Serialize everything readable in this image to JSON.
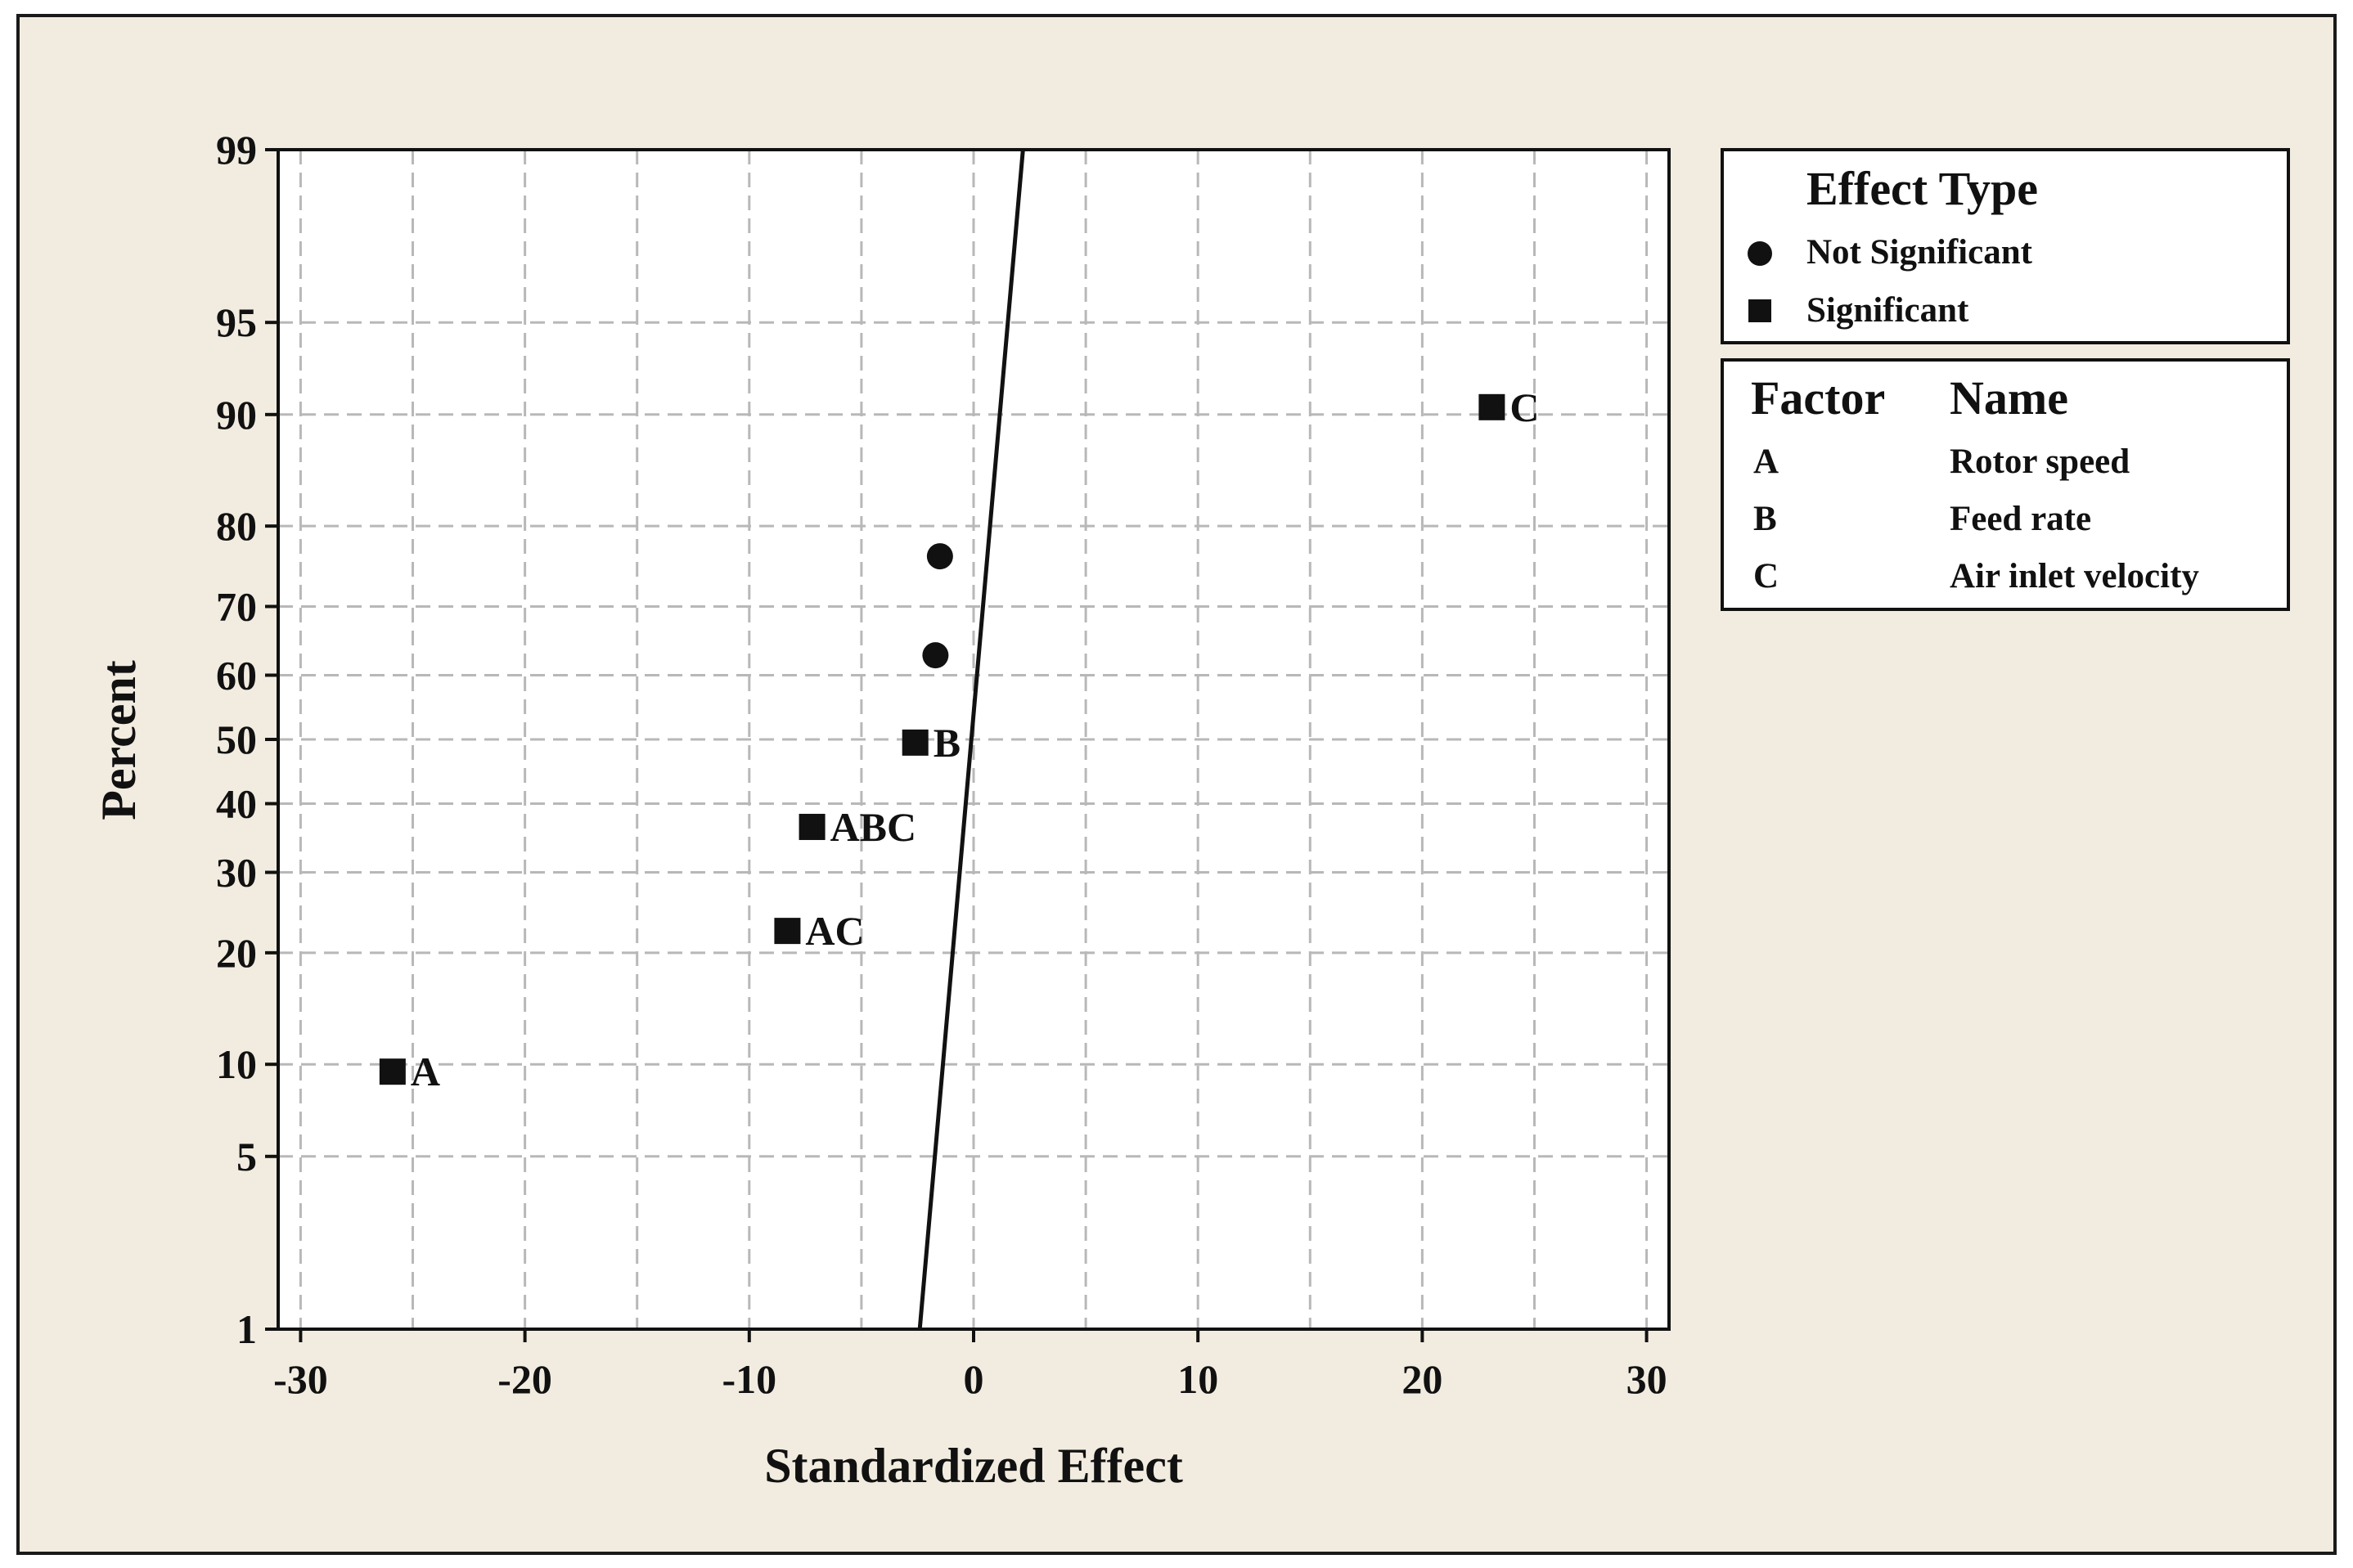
{
  "chart_data": {
    "type": "scatter",
    "title": "",
    "xlabel": "Standardized Effect",
    "ylabel": "Percent",
    "xlim": [
      -31,
      31
    ],
    "xticks": [
      -30,
      -20,
      -10,
      0,
      10,
      20,
      30
    ],
    "yscale": "normal-probability",
    "yticks": [
      1,
      5,
      10,
      20,
      30,
      40,
      50,
      60,
      70,
      80,
      90,
      95,
      99
    ],
    "grid": true,
    "points": [
      {
        "label": "A",
        "x": -25.9,
        "y": 9.5,
        "type": "Significant"
      },
      {
        "label": "AC",
        "x": -8.3,
        "y": 22.5,
        "type": "Significant"
      },
      {
        "label": "ABC",
        "x": -7.2,
        "y": 36.5,
        "type": "Significant"
      },
      {
        "label": "B",
        "x": -2.6,
        "y": 49.5,
        "type": "Significant"
      },
      {
        "label": "",
        "x": -1.7,
        "y": 63.0,
        "type": "Not Significant"
      },
      {
        "label": "",
        "x": -1.5,
        "y": 76.5,
        "type": "Not Significant"
      },
      {
        "label": "C",
        "x": 23.1,
        "y": 90.5,
        "type": "Significant"
      }
    ],
    "reference_line": {
      "x_at_y1": -2.4,
      "x_at_y99": 2.2
    },
    "legend": {
      "position": "right",
      "effect_type_title": "Effect Type",
      "effect_types": [
        {
          "symbol": "circle",
          "label": "Not Significant"
        },
        {
          "symbol": "square",
          "label": "Significant"
        }
      ],
      "factor_header": "Factor",
      "name_header": "Name",
      "factors": [
        {
          "factor": "A",
          "name": "Rotor speed"
        },
        {
          "factor": "B",
          "name": "Feed rate"
        },
        {
          "factor": "C",
          "name": "Air inlet velocity"
        }
      ]
    }
  }
}
